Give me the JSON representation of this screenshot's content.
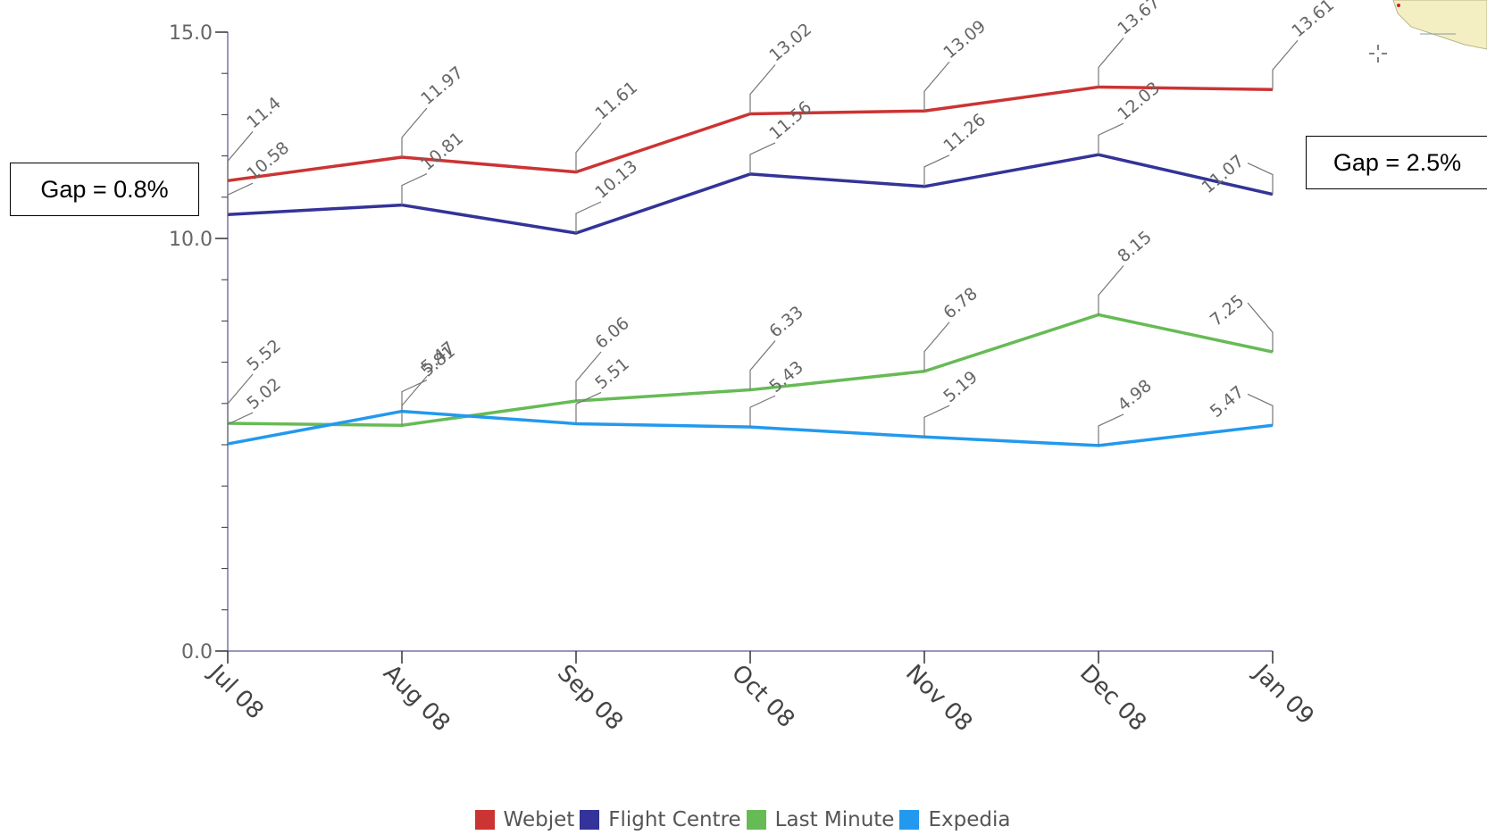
{
  "chart_data": {
    "type": "line",
    "categories": [
      "Jul 08",
      "Aug 08",
      "Sep 08",
      "Oct 08",
      "Nov 08",
      "Dec 08",
      "Jan 09"
    ],
    "ylim": [
      0,
      15
    ],
    "yticks": [
      "0.0",
      "10.0",
      "15.0"
    ],
    "series": [
      {
        "name": "Webjet",
        "color": "#cc3333",
        "values": [
          11.4,
          11.97,
          11.61,
          13.02,
          13.09,
          13.67,
          13.61
        ],
        "labels": [
          "11.4",
          "11.97",
          "11.61",
          "13.02",
          "13.09",
          "13.67",
          "13.61"
        ]
      },
      {
        "name": "Flight Centre",
        "color": "#333399",
        "values": [
          10.58,
          10.81,
          10.13,
          11.56,
          11.26,
          12.03,
          11.07
        ],
        "labels": [
          "10.58",
          "10.81",
          "10.13",
          "11.56",
          "11.26",
          "12.03",
          "11.07"
        ]
      },
      {
        "name": "Last Minute",
        "color": "#66bb55",
        "values": [
          5.52,
          5.47,
          6.06,
          6.33,
          6.78,
          8.15,
          7.25
        ],
        "labels": [
          "5.52",
          "5.47",
          "6.06",
          "6.33",
          "6.78",
          "8.15",
          "7.25"
        ]
      },
      {
        "name": "Expedia",
        "color": "#2299ee",
        "values": [
          5.02,
          5.81,
          5.51,
          5.43,
          5.19,
          4.98,
          5.47
        ],
        "labels": [
          "5.02",
          "5.81",
          "5.51",
          "5.43",
          "5.19",
          "4.98",
          "5.47"
        ]
      }
    ],
    "legend_position": "bottom"
  },
  "annotations": {
    "gap_left": "Gap = 0.8%",
    "gap_right": "Gap = 2.5%"
  }
}
